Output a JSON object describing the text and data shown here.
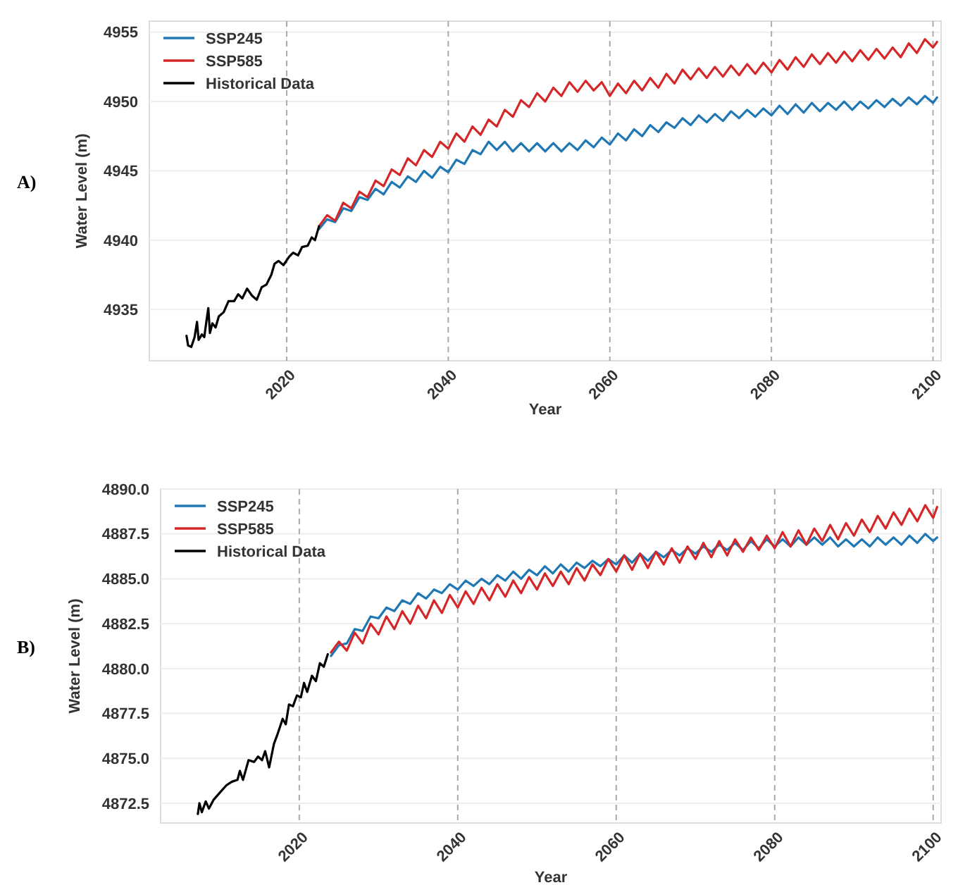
{
  "chart_data": [
    {
      "type": "line",
      "xlabel": "Year",
      "ylabel": "Water Level (m)",
      "annotations": [
        "A)"
      ],
      "xlim": [
        2003,
        2101
      ],
      "ylim": [
        4931.3,
        4955.8
      ],
      "xticks": [
        2020,
        2040,
        2060,
        2080,
        2100
      ],
      "yticks": [
        4935,
        4940,
        4945,
        4950,
        4955
      ],
      "grid": true,
      "legend": "top left",
      "x": [
        2024,
        2025,
        2026,
        2027,
        2028,
        2029,
        2030,
        2031,
        2032,
        2033,
        2034,
        2035,
        2036,
        2037,
        2038,
        2039,
        2040,
        2041,
        2042,
        2043,
        2044,
        2045,
        2046,
        2047,
        2048,
        2049,
        2050,
        2051,
        2052,
        2053,
        2054,
        2055,
        2056,
        2057,
        2058,
        2059,
        2060,
        2061,
        2062,
        2063,
        2064,
        2065,
        2066,
        2067,
        2068,
        2069,
        2070,
        2071,
        2072,
        2073,
        2074,
        2075,
        2076,
        2077,
        2078,
        2079,
        2080,
        2081,
        2082,
        2083,
        2084,
        2085,
        2086,
        2087,
        2088,
        2089,
        2090,
        2091,
        2092,
        2093,
        2094,
        2095,
        2096,
        2097,
        2098,
        2099,
        2100,
        2100.5
      ],
      "series": [
        {
          "name": "SSP245",
          "color": "#1f77b4",
          "values": [
            4940.8,
            4941.5,
            4941.3,
            4942.3,
            4942.1,
            4943.1,
            4942.9,
            4943.7,
            4943.3,
            4944.2,
            4943.8,
            4944.6,
            4944.2,
            4945.0,
            4944.5,
            4945.3,
            4944.9,
            4945.8,
            4945.5,
            4946.5,
            4946.2,
            4947.1,
            4946.5,
            4947.1,
            4946.4,
            4947.0,
            4946.4,
            4947.0,
            4946.4,
            4947.0,
            4946.4,
            4947.0,
            4946.5,
            4947.2,
            4946.7,
            4947.4,
            4946.9,
            4947.7,
            4947.2,
            4948.0,
            4947.5,
            4948.3,
            4947.8,
            4948.5,
            4948.1,
            4948.8,
            4948.3,
            4949.0,
            4948.5,
            4949.1,
            4948.6,
            4949.3,
            4948.8,
            4949.4,
            4948.9,
            4949.5,
            4949.0,
            4949.7,
            4949.1,
            4949.8,
            4949.2,
            4949.9,
            4949.3,
            4949.9,
            4949.4,
            4950.0,
            4949.4,
            4950.0,
            4949.5,
            4950.1,
            4949.6,
            4950.2,
            4949.7,
            4950.3,
            4949.8,
            4950.4,
            4949.9,
            4950.3
          ]
        },
        {
          "name": "SSP585",
          "color": "#d62728",
          "values": [
            4941.0,
            4941.8,
            4941.4,
            4942.7,
            4942.3,
            4943.5,
            4943.1,
            4944.3,
            4943.9,
            4945.1,
            4944.7,
            4945.9,
            4945.4,
            4946.5,
            4946.0,
            4947.1,
            4946.6,
            4947.7,
            4947.1,
            4948.2,
            4947.6,
            4948.7,
            4948.2,
            4949.4,
            4948.9,
            4950.1,
            4949.6,
            4950.6,
            4950.0,
            4951.0,
            4950.4,
            4951.4,
            4950.7,
            4951.5,
            4950.8,
            4951.4,
            4950.4,
            4951.3,
            4950.6,
            4951.5,
            4950.8,
            4951.7,
            4951.0,
            4952.0,
            4951.3,
            4952.3,
            4951.6,
            4952.4,
            4951.7,
            4952.5,
            4951.8,
            4952.6,
            4951.9,
            4952.7,
            4952.0,
            4952.8,
            4952.1,
            4953.0,
            4952.3,
            4953.2,
            4952.5,
            4953.4,
            4952.7,
            4953.5,
            4952.8,
            4953.6,
            4952.9,
            4953.7,
            4953.0,
            4953.8,
            4953.1,
            4953.9,
            4953.2,
            4954.2,
            4953.5,
            4954.5,
            4953.9,
            4954.3
          ]
        },
        {
          "name": "Historical Data",
          "color": "#000000",
          "x": [
            2007.6,
            2007.8,
            2008.2,
            2008.6,
            2008.9,
            2009.1,
            2009.5,
            2009.8,
            2010.1,
            2010.3,
            2010.5,
            2010.8,
            2011.2,
            2011.6,
            2012.2,
            2012.8,
            2013.5,
            2014.0,
            2014.5,
            2015.1,
            2015.7,
            2016.3,
            2016.9,
            2017.5,
            2018.1,
            2018.5,
            2019.0,
            2019.6,
            2020.3,
            2020.8,
            2021.4,
            2021.9,
            2022.6,
            2023.1,
            2023.5,
            2024.0
          ],
          "values": [
            4933.1,
            4932.4,
            4932.3,
            4933.0,
            4934.1,
            4932.8,
            4933.2,
            4933.0,
            4934.3,
            4935.1,
            4933.3,
            4934.0,
            4933.7,
            4934.5,
            4934.8,
            4935.6,
            4935.6,
            4936.1,
            4935.8,
            4936.5,
            4936.0,
            4935.7,
            4936.6,
            4936.8,
            4937.5,
            4938.3,
            4938.5,
            4938.2,
            4938.8,
            4939.1,
            4938.9,
            4939.5,
            4939.6,
            4940.2,
            4940.0,
            4941.0
          ]
        }
      ]
    },
    {
      "type": "line",
      "xlabel": "Year",
      "ylabel": "Water Level (m)",
      "annotations": [
        "B)"
      ],
      "xlim": [
        2002.5,
        2101
      ],
      "ylim": [
        4871.4,
        4890
      ],
      "xticks": [
        2020,
        2040,
        2060,
        2080,
        2100
      ],
      "yticks": [
        {
          "value": 4872.5,
          "label": "4872.5"
        },
        {
          "value": 4875,
          "label": "4875.0"
        },
        {
          "value": 4877.5,
          "label": "4877.5"
        },
        {
          "value": 4880,
          "label": "4880.0"
        },
        {
          "value": 4882.5,
          "label": "4882.5"
        },
        {
          "value": 4885,
          "label": "4885.0"
        },
        {
          "value": 4887.5,
          "label": "4887.5"
        },
        {
          "value": 4890,
          "label": "4890.0"
        }
      ],
      "grid": true,
      "legend": "top left",
      "x": [
        2024,
        2025,
        2026,
        2027,
        2028,
        2029,
        2030,
        2031,
        2032,
        2033,
        2034,
        2035,
        2036,
        2037,
        2038,
        2039,
        2040,
        2041,
        2042,
        2043,
        2044,
        2045,
        2046,
        2047,
        2048,
        2049,
        2050,
        2051,
        2052,
        2053,
        2054,
        2055,
        2056,
        2057,
        2058,
        2059,
        2060,
        2061,
        2062,
        2063,
        2064,
        2065,
        2066,
        2067,
        2068,
        2069,
        2070,
        2071,
        2072,
        2073,
        2074,
        2075,
        2076,
        2077,
        2078,
        2079,
        2080,
        2081,
        2082,
        2083,
        2084,
        2085,
        2086,
        2087,
        2088,
        2089,
        2090,
        2091,
        2092,
        2093,
        2094,
        2095,
        2096,
        2097,
        2098,
        2099,
        2100,
        2100.5
      ],
      "series": [
        {
          "name": "SSP245",
          "color": "#1f77b4",
          "values": [
            4880.7,
            4881.3,
            4881.4,
            4882.2,
            4882.1,
            4882.9,
            4882.8,
            4883.4,
            4883.2,
            4883.8,
            4883.6,
            4884.2,
            4883.9,
            4884.4,
            4884.2,
            4884.7,
            4884.4,
            4884.9,
            4884.6,
            4885.0,
            4884.7,
            4885.2,
            4884.9,
            4885.4,
            4885.0,
            4885.5,
            4885.2,
            4885.7,
            4885.3,
            4885.8,
            4885.4,
            4885.9,
            4885.6,
            4886.0,
            4885.7,
            4886.1,
            4885.8,
            4886.3,
            4885.9,
            4886.4,
            4886.0,
            4886.5,
            4886.2,
            4886.6,
            4886.3,
            4886.7,
            4886.4,
            4886.8,
            4886.5,
            4886.9,
            4886.6,
            4887.0,
            4886.6,
            4887.1,
            4886.7,
            4887.2,
            4886.8,
            4887.2,
            4886.8,
            4887.3,
            4886.9,
            4887.3,
            4886.9,
            4887.3,
            4886.8,
            4887.2,
            4886.8,
            4887.2,
            4886.8,
            4887.3,
            4886.9,
            4887.3,
            4886.9,
            4887.4,
            4887.0,
            4887.5,
            4887.1,
            4887.3
          ]
        },
        {
          "name": "SSP585",
          "color": "#d62728",
          "values": [
            4880.9,
            4881.5,
            4881.0,
            4882.0,
            4881.4,
            4882.5,
            4881.9,
            4882.9,
            4882.2,
            4883.2,
            4882.5,
            4883.5,
            4882.8,
            4883.8,
            4883.1,
            4884.1,
            4883.4,
            4884.3,
            4883.6,
            4884.5,
            4883.8,
            4884.7,
            4884.0,
            4884.9,
            4884.2,
            4885.1,
            4884.4,
            4885.3,
            4884.6,
            4885.4,
            4884.7,
            4885.6,
            4884.9,
            4885.8,
            4885.2,
            4886.1,
            4885.4,
            4886.3,
            4885.5,
            4886.4,
            4885.6,
            4886.5,
            4885.8,
            4886.7,
            4885.9,
            4886.8,
            4886.1,
            4887.0,
            4886.2,
            4887.1,
            4886.3,
            4887.2,
            4886.5,
            4887.3,
            4886.6,
            4887.4,
            4886.7,
            4887.6,
            4886.8,
            4887.7,
            4886.9,
            4887.8,
            4887.1,
            4888.0,
            4887.2,
            4888.1,
            4887.4,
            4888.3,
            4887.6,
            4888.5,
            4887.8,
            4888.7,
            4888.0,
            4888.9,
            4888.2,
            4889.1,
            4888.4,
            4889.0
          ]
        },
        {
          "name": "Historical Data",
          "color": "#000000",
          "x": [
            2007.2,
            2007.4,
            2007.7,
            2008.2,
            2008.6,
            2009.2,
            2010.0,
            2010.8,
            2011.5,
            2012.2,
            2012.5,
            2012.9,
            2013.6,
            2014.3,
            2014.8,
            2015.3,
            2015.7,
            2016.2,
            2016.8,
            2017.3,
            2017.9,
            2018.3,
            2018.7,
            2019.2,
            2019.7,
            2020.2,
            2020.6,
            2021.0,
            2021.6,
            2022.1,
            2022.6,
            2023.1,
            2023.6
          ],
          "values": [
            4871.9,
            4872.5,
            4872.0,
            4872.6,
            4872.2,
            4872.7,
            4873.1,
            4873.5,
            4873.7,
            4873.8,
            4874.3,
            4873.8,
            4874.9,
            4874.8,
            4875.1,
            4874.9,
            4875.4,
            4874.5,
            4875.8,
            4876.4,
            4877.2,
            4876.9,
            4878.0,
            4877.9,
            4878.5,
            4878.4,
            4879.2,
            4878.7,
            4879.6,
            4879.3,
            4880.3,
            4880.1,
            4880.8
          ]
        }
      ]
    }
  ]
}
